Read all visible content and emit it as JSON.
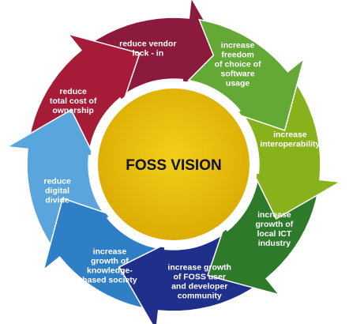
{
  "diagram": {
    "center": {
      "title": "FOSS VISION",
      "color": "#e6b800"
    },
    "segments": [
      {
        "name": "freedom-of-choice",
        "color": "#64a836",
        "lines": [
          "increase",
          "freedom",
          "of choice of",
          "software",
          "usage"
        ]
      },
      {
        "name": "interoperability",
        "color": "#88b21c",
        "lines": [
          "increase",
          "interoperability"
        ]
      },
      {
        "name": "local-ict-industry",
        "color": "#2d7a2a",
        "lines": [
          "increase",
          "growth of",
          "local ICT",
          "industry"
        ]
      },
      {
        "name": "user-developer-community",
        "color": "#1f2f8a",
        "lines": [
          "increase growth",
          "of FOSS  user",
          "and developer",
          "community"
        ]
      },
      {
        "name": "knowledge-based-society",
        "color": "#2f7fc6",
        "lines": [
          "increase",
          "growth of",
          "knowledge-",
          "based society"
        ]
      },
      {
        "name": "digital-divide",
        "color": "#5aa6dc",
        "lines": [
          "reduce",
          "digital",
          "divide"
        ]
      },
      {
        "name": "total-cost",
        "color": "#a51b38",
        "lines": [
          "reduce",
          "total cost of",
          "ownership"
        ]
      },
      {
        "name": "vendor-lock-in",
        "color": "#8c1a3c",
        "lines": [
          "reduce vendor",
          "lock - in"
        ]
      }
    ]
  }
}
